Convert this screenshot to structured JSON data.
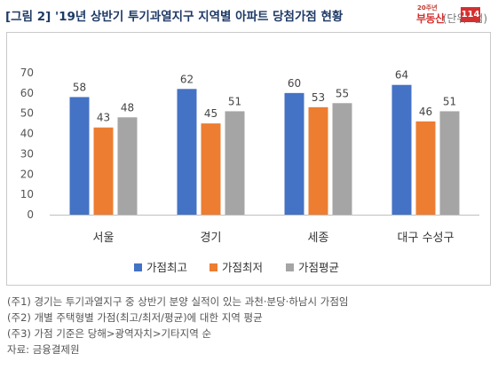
{
  "title": "[그림 2] '19년 상반기 투기과열지구 지역별 아파트 당첨가점 현황",
  "unit": "(단위: 점)",
  "logo": {
    "sup": "20주년",
    "name": "부동산",
    "box": "114"
  },
  "notes": [
    "(주1) 경기는 투기과열지구 중 상반기 분양 실적이 있는 과천·분당·하남시 가점임",
    "(주2) 개별 주택형별 가점(최고/최저/평균)에 대한 지역 평균",
    "(주3) 가점 기준은 당해>광역자치>기타지역 순",
    "자료: 금융결제원"
  ],
  "chart_data": {
    "type": "bar",
    "categories": [
      "서울",
      "경기",
      "세종",
      "대구 수성구"
    ],
    "series": [
      {
        "name": "가점최고",
        "color": "#4472c4",
        "values": [
          58,
          62,
          60,
          64
        ]
      },
      {
        "name": "가점최저",
        "color": "#ed7d31",
        "values": [
          43,
          45,
          53,
          46
        ]
      },
      {
        "name": "가점평균",
        "color": "#a5a5a5",
        "values": [
          48,
          51,
          55,
          51
        ]
      }
    ],
    "ylim": [
      0,
      70
    ],
    "yticks": [
      0,
      10,
      20,
      30,
      40,
      50,
      60,
      70
    ],
    "grid": false,
    "legend": "bottom",
    "data_labels": true
  }
}
